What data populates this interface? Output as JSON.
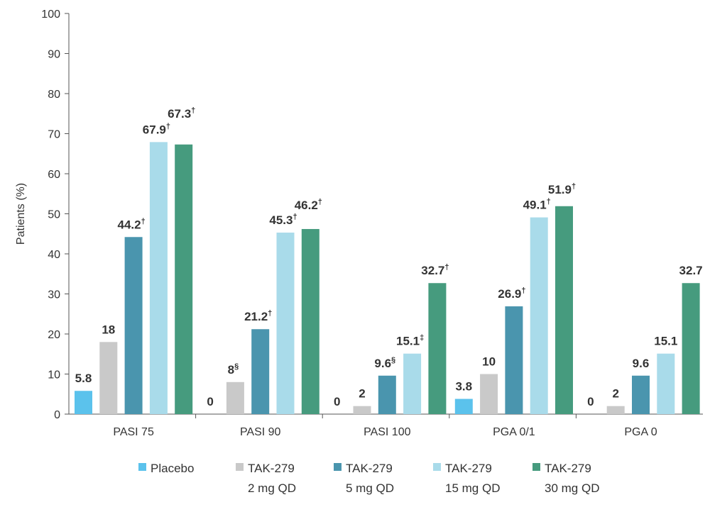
{
  "chart_data": {
    "type": "bar",
    "ylabel": "Patients (%)",
    "xlabel": "",
    "ylim": [
      0,
      100
    ],
    "yticks": [
      0,
      10,
      20,
      30,
      40,
      50,
      60,
      70,
      80,
      90,
      100
    ],
    "grid": false,
    "legend_position": "bottom",
    "categories": [
      "PASI 75",
      "PASI 90",
      "PASI 100",
      "PGA 0/1",
      "PGA 0"
    ],
    "series": [
      {
        "name": "Placebo",
        "name_line2": "",
        "color": "#5bc2ec",
        "values": [
          5.8,
          0,
          0,
          3.8,
          0
        ],
        "labels": [
          "5.8",
          "0",
          "0",
          "3.8",
          "0"
        ],
        "marks": [
          "",
          "",
          "",
          "",
          ""
        ]
      },
      {
        "name": "TAK-279",
        "name_line2": "2 mg QD",
        "color": "#c9c9c9",
        "values": [
          18,
          8,
          2,
          10,
          2
        ],
        "labels": [
          "18",
          "8",
          "2",
          "10",
          "2"
        ],
        "marks": [
          "",
          "§",
          "",
          "",
          ""
        ]
      },
      {
        "name": "TAK-279",
        "name_line2": "5 mg QD",
        "color": "#4a95ae",
        "values": [
          44.2,
          21.2,
          9.6,
          26.9,
          9.6
        ],
        "labels": [
          "44.2",
          "21.2",
          "9.6",
          "26.9",
          "9.6"
        ],
        "marks": [
          "†",
          "†",
          "§",
          "†",
          ""
        ]
      },
      {
        "name": "TAK-279",
        "name_line2": "15 mg QD",
        "color": "#a9dbea",
        "values": [
          67.9,
          45.3,
          15.1,
          49.1,
          15.1
        ],
        "labels": [
          "67.9",
          "45.3",
          "15.1",
          "49.1",
          "15.1"
        ],
        "marks": [
          "†",
          "†",
          "‡",
          "†",
          ""
        ]
      },
      {
        "name": "TAK-279",
        "name_line2": "30 mg QD",
        "color": "#469b7e",
        "values": [
          67.3,
          46.2,
          32.7,
          51.9,
          32.7
        ],
        "labels": [
          "67.3",
          "46.2",
          "32.7",
          "51.9",
          "32.7"
        ],
        "marks": [
          "†",
          "†",
          "†",
          "†",
          ""
        ]
      }
    ]
  }
}
